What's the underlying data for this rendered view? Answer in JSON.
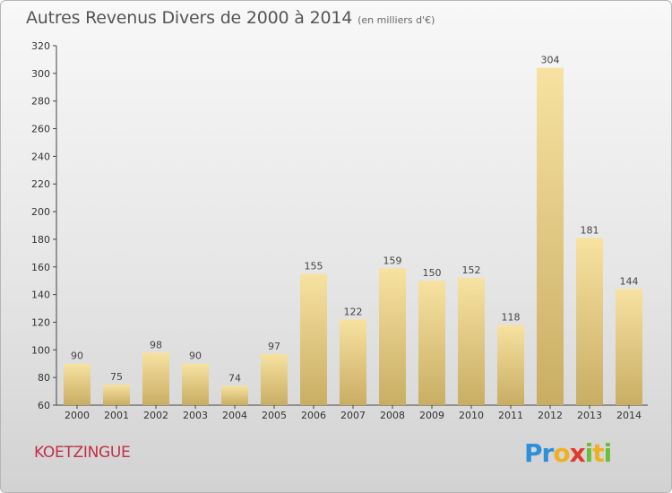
{
  "header": {
    "title": "Autres Revenus Divers de 2000 à 2014",
    "subtitle": "(en milliers d'€)"
  },
  "footer": {
    "commune": "KOETZINGUE",
    "logo_text": "Proxiti"
  },
  "colors": {
    "bar_top": "#f7e2a1",
    "bar_bottom": "#c9ad63",
    "commune": "#c0304a",
    "logo": [
      "#2f8fd8",
      "#e23a2a",
      "#f0b021",
      "#6abf3a"
    ]
  },
  "chart_data": {
    "type": "bar",
    "title": "Autres Revenus Divers de 2000 à 2014",
    "subtitle": "(en milliers d'€)",
    "categories": [
      "2000",
      "2001",
      "2002",
      "2003",
      "2004",
      "2005",
      "2006",
      "2007",
      "2008",
      "2009",
      "2010",
      "2011",
      "2012",
      "2013",
      "2014"
    ],
    "values": [
      90,
      75,
      98,
      90,
      74,
      97,
      155,
      122,
      159,
      150,
      152,
      118,
      304,
      181,
      144
    ],
    "ylim": [
      60,
      320
    ],
    "yticks": [
      60,
      80,
      100,
      120,
      140,
      160,
      180,
      200,
      220,
      240,
      260,
      280,
      300,
      320
    ],
    "grid": false,
    "data_labels": true
  }
}
